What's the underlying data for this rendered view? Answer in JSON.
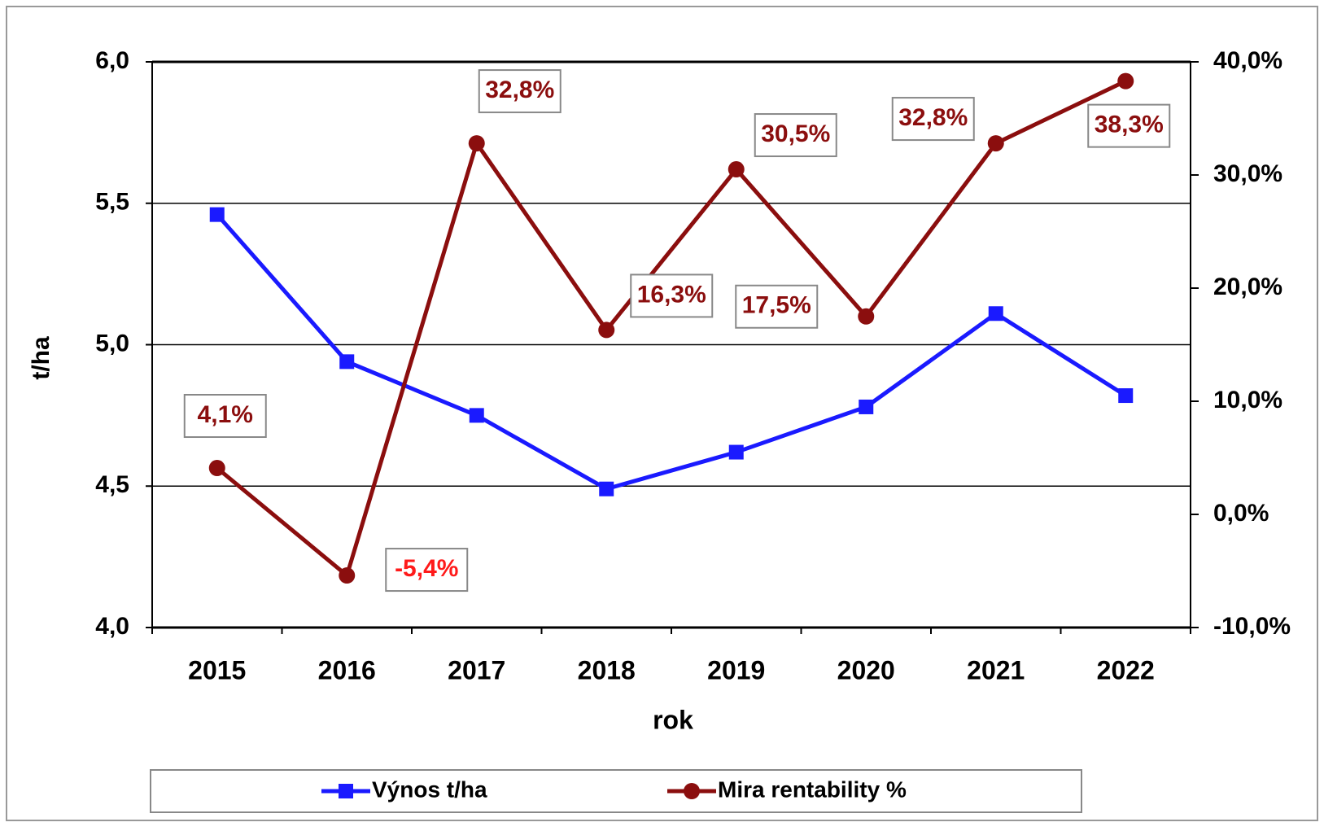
{
  "chart_data": {
    "type": "line",
    "categories": [
      "2015",
      "2016",
      "2017",
      "2018",
      "2019",
      "2020",
      "2021",
      "2022"
    ],
    "x_label": "rok",
    "y_label": "t/ha",
    "ylim": [
      4.0,
      6.0
    ],
    "yticks": [
      {
        "value": 4.0,
        "label": "4,0"
      },
      {
        "value": 4.5,
        "label": "4,5"
      },
      {
        "value": 5.0,
        "label": "5,0"
      },
      {
        "value": 5.5,
        "label": "5,5"
      },
      {
        "value": 6.0,
        "label": "6,0"
      }
    ],
    "y2lim": [
      -10,
      40
    ],
    "y2ticks": [
      {
        "value": -10,
        "label": "-10,0%"
      },
      {
        "value": 0,
        "label": "0,0%"
      },
      {
        "value": 10,
        "label": "10,0%"
      },
      {
        "value": 20,
        "label": "20,0%"
      },
      {
        "value": 30,
        "label": "30,0%"
      },
      {
        "value": 40,
        "label": "40,0%"
      }
    ],
    "grid": true,
    "legend": "bottom",
    "series": [
      {
        "name": "Výnos t/ha",
        "color": "#1a1aff",
        "marker": "square",
        "values": [
          5.46,
          4.94,
          4.75,
          4.49,
          4.62,
          4.78,
          5.11,
          4.82
        ]
      },
      {
        "name": "Mira rentability %",
        "color": "#8b0e0e",
        "marker": "circle",
        "axis": "y2",
        "values": [
          4.1,
          -5.4,
          32.8,
          16.3,
          30.5,
          17.5,
          32.8,
          38.3
        ],
        "value_labels": [
          "4,1%",
          "-5,4%",
          "32,8%",
          "16,3%",
          "30,5%",
          "17,5%",
          "32,8%",
          "38,3%"
        ]
      }
    ]
  }
}
